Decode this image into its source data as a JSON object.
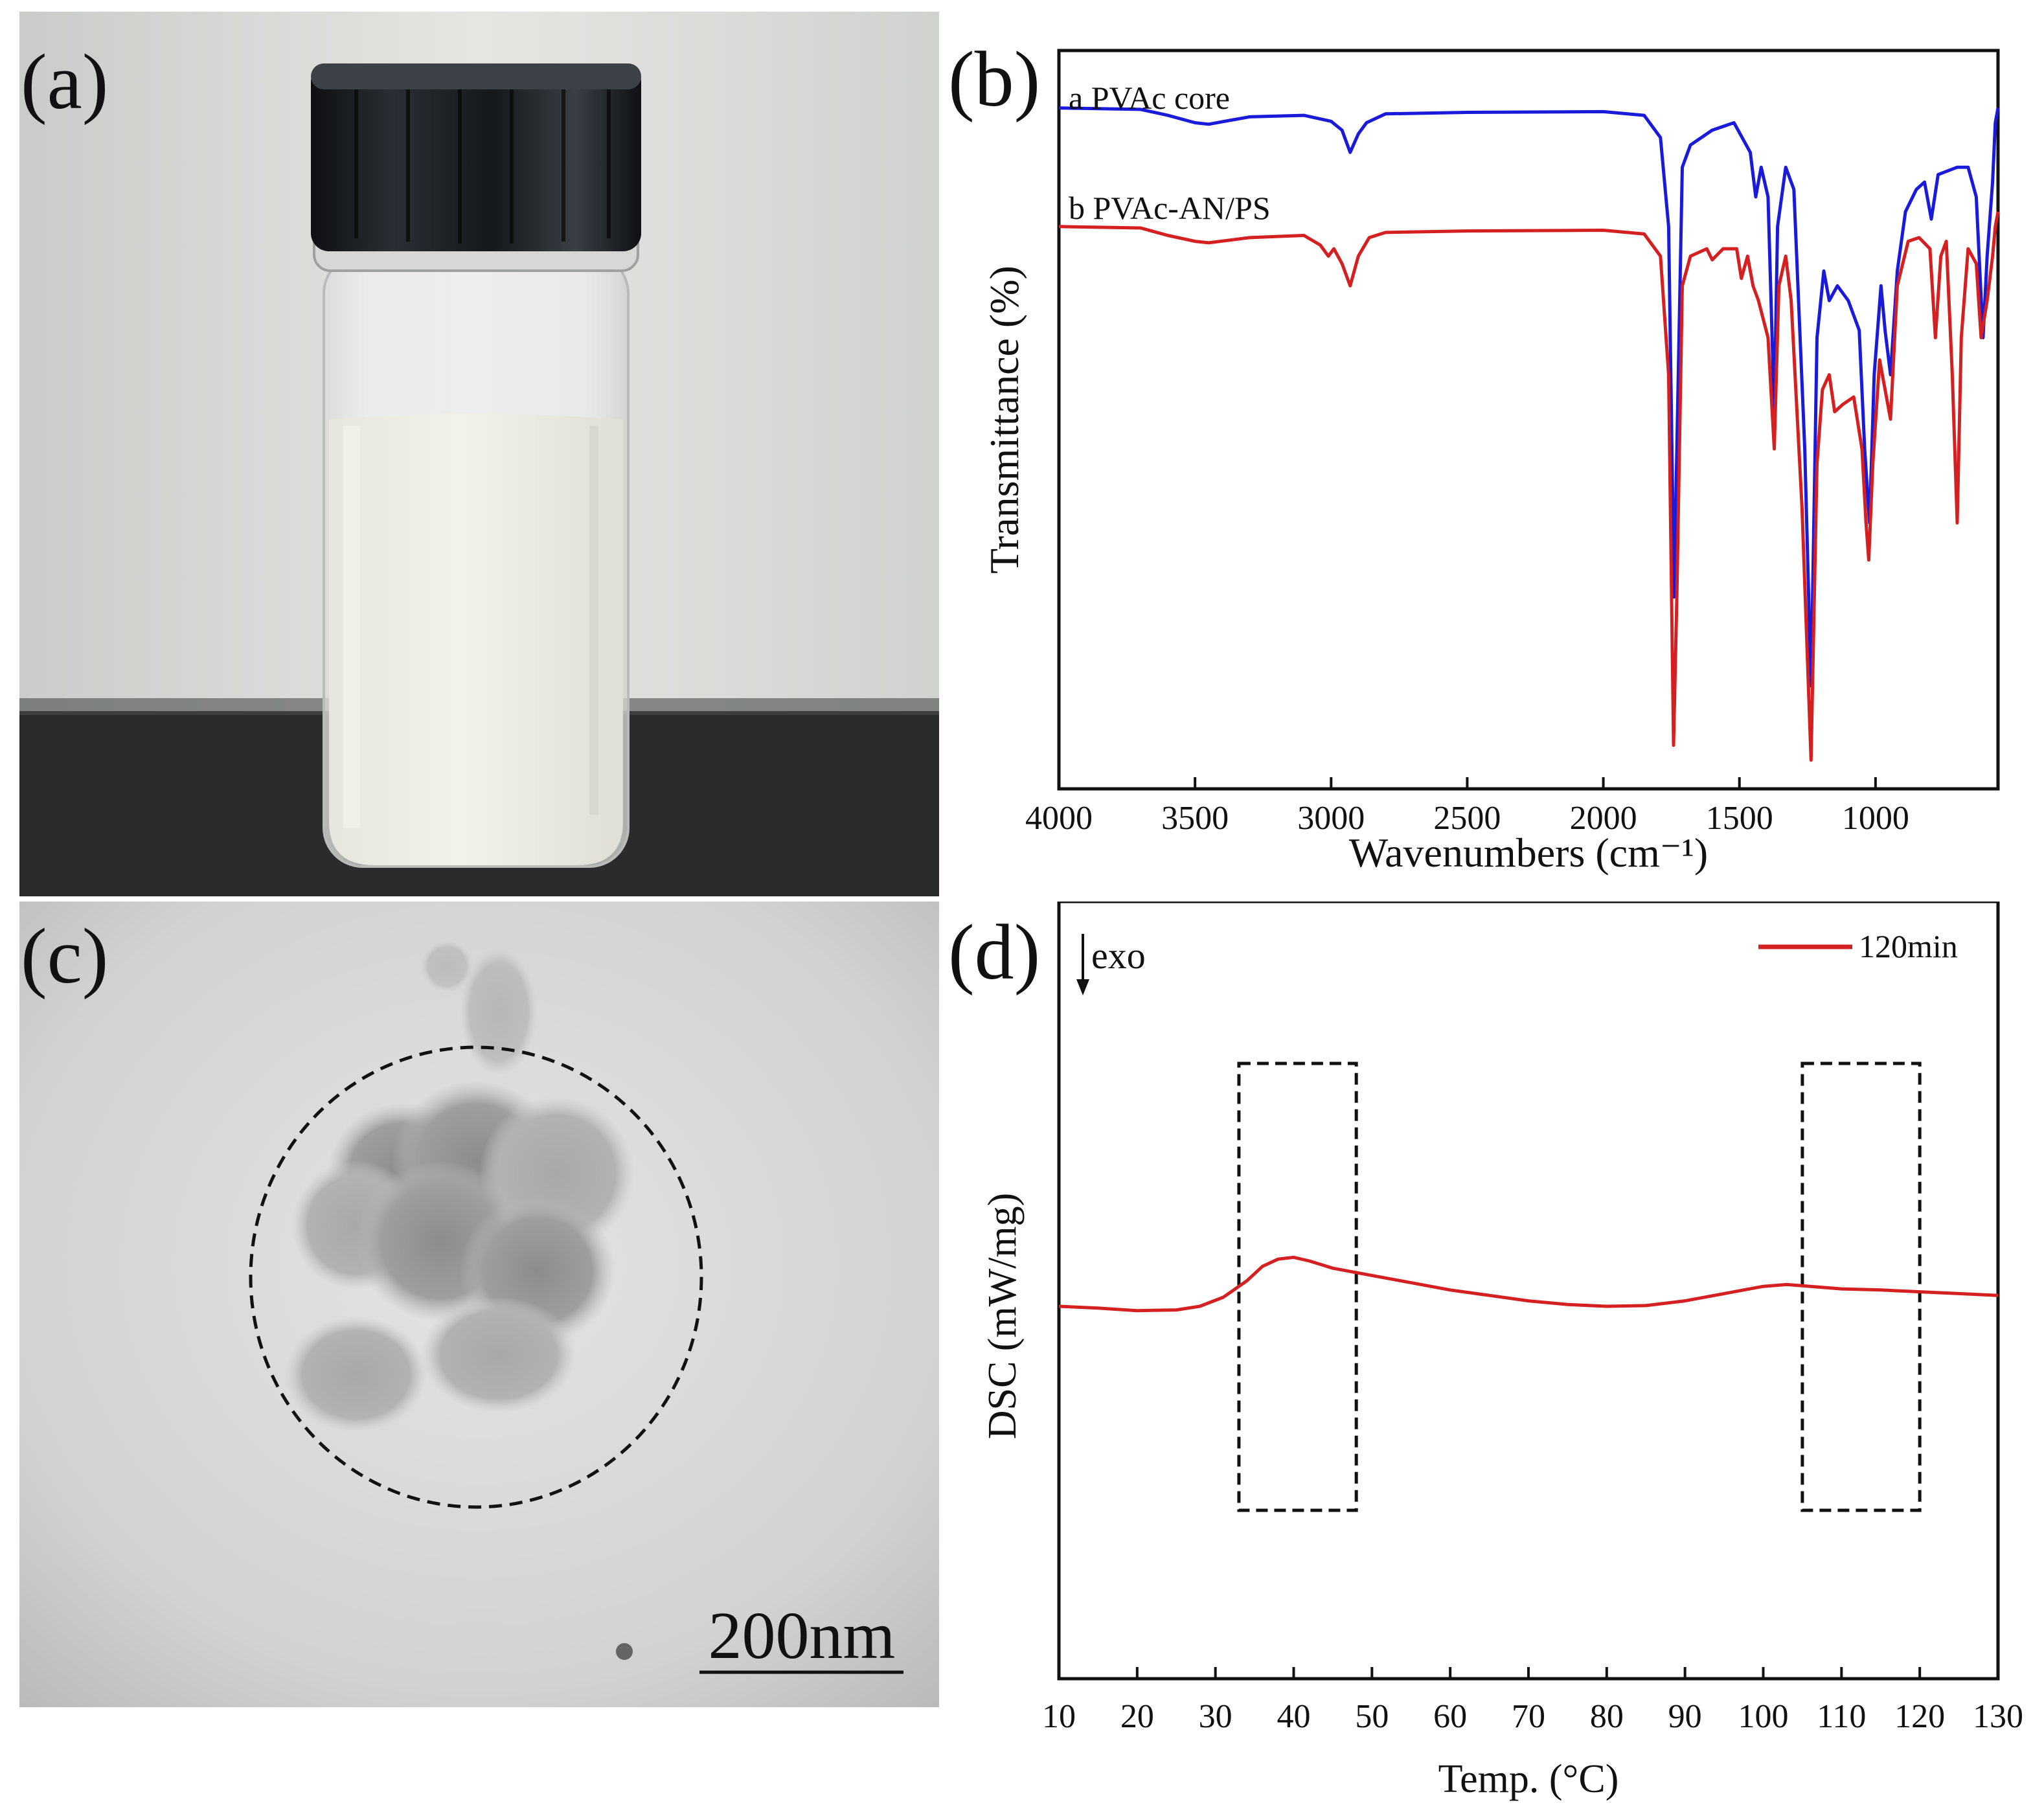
{
  "figure": {
    "panel_a": {
      "label": "(a)",
      "description_icon": "vial-photo"
    },
    "panel_b": {
      "label": "(b)"
    },
    "panel_c": {
      "label": "(c)",
      "scale_bar_text": "200nm"
    },
    "panel_d": {
      "label": "(d)",
      "exo_text": "exo"
    }
  },
  "chart_data": [
    {
      "type": "line",
      "panel": "(b)",
      "xlabel": "Wavenumbers (cm⁻¹)",
      "ylabel": "Transmittance (%)",
      "x_reversed": true,
      "xlim": [
        4000,
        550
      ],
      "xticks": [
        "4000",
        "3500",
        "3000",
        "2500",
        "2000",
        "1500",
        "1000"
      ],
      "y_ticks_shown": false,
      "legend": "top-left, inline labels",
      "series": [
        {
          "name": "a PVAc core",
          "color": "#1a1adb",
          "points": [
            [
              4000,
              86
            ],
            [
              3700,
              85.8
            ],
            [
              3600,
              85
            ],
            [
              3500,
              84
            ],
            [
              3450,
              83.8
            ],
            [
              3300,
              84.8
            ],
            [
              3100,
              85
            ],
            [
              3000,
              84.2
            ],
            [
              2960,
              83
            ],
            [
              2930,
              80
            ],
            [
              2900,
              82.5
            ],
            [
              2870,
              84
            ],
            [
              2800,
              85.2
            ],
            [
              2500,
              85.4
            ],
            [
              2000,
              85.5
            ],
            [
              1850,
              85
            ],
            [
              1790,
              82
            ],
            [
              1760,
              70
            ],
            [
              1740,
              20
            ],
            [
              1730,
              40
            ],
            [
              1710,
              78
            ],
            [
              1680,
              81
            ],
            [
              1600,
              83
            ],
            [
              1520,
              84
            ],
            [
              1460,
              80
            ],
            [
              1440,
              74
            ],
            [
              1420,
              78
            ],
            [
              1395,
              74
            ],
            [
              1372,
              45
            ],
            [
              1360,
              70
            ],
            [
              1330,
              78
            ],
            [
              1300,
              75
            ],
            [
              1260,
              40
            ],
            [
              1237,
              8
            ],
            [
              1215,
              55
            ],
            [
              1190,
              64
            ],
            [
              1170,
              60
            ],
            [
              1140,
              62
            ],
            [
              1100,
              60
            ],
            [
              1060,
              56
            ],
            [
              1040,
              40
            ],
            [
              1022,
              30
            ],
            [
              1005,
              50
            ],
            [
              980,
              62
            ],
            [
              965,
              56
            ],
            [
              945,
              50
            ],
            [
              920,
              64
            ],
            [
              890,
              72
            ],
            [
              850,
              75
            ],
            [
              820,
              76
            ],
            [
              795,
              71
            ],
            [
              770,
              77
            ],
            [
              700,
              78
            ],
            [
              660,
              78
            ],
            [
              630,
              74
            ],
            [
              605,
              55
            ],
            [
              590,
              66
            ],
            [
              570,
              76
            ],
            [
              560,
              84
            ],
            [
              550,
              86
            ]
          ]
        },
        {
          "name": "b PVAc-AN/PS",
          "color": "#d42020",
          "points": [
            [
              4000,
              70
            ],
            [
              3700,
              69.8
            ],
            [
              3600,
              68.8
            ],
            [
              3500,
              68
            ],
            [
              3450,
              67.8
            ],
            [
              3300,
              68.5
            ],
            [
              3100,
              68.8
            ],
            [
              3040,
              67.5
            ],
            [
              3010,
              66
            ],
            [
              2990,
              67
            ],
            [
              2960,
              65
            ],
            [
              2930,
              62
            ],
            [
              2900,
              66
            ],
            [
              2860,
              68.5
            ],
            [
              2800,
              69.2
            ],
            [
              2500,
              69.4
            ],
            [
              2000,
              69.5
            ],
            [
              1850,
              69
            ],
            [
              1790,
              66
            ],
            [
              1760,
              50
            ],
            [
              1742,
              0
            ],
            [
              1730,
              20
            ],
            [
              1710,
              62
            ],
            [
              1680,
              66
            ],
            [
              1620,
              67
            ],
            [
              1600,
              65.5
            ],
            [
              1560,
              67
            ],
            [
              1510,
              67
            ],
            [
              1493,
              63
            ],
            [
              1470,
              66
            ],
            [
              1450,
              62
            ],
            [
              1430,
              60
            ],
            [
              1395,
              55
            ],
            [
              1372,
              40
            ],
            [
              1355,
              62
            ],
            [
              1330,
              66
            ],
            [
              1310,
              60
            ],
            [
              1270,
              32
            ],
            [
              1237,
              -2
            ],
            [
              1215,
              38
            ],
            [
              1195,
              48
            ],
            [
              1170,
              50
            ],
            [
              1150,
              45
            ],
            [
              1120,
              46
            ],
            [
              1080,
              47
            ],
            [
              1050,
              40
            ],
            [
              1035,
              30
            ],
            [
              1025,
              25
            ],
            [
              1010,
              38
            ],
            [
              985,
              52
            ],
            [
              965,
              48
            ],
            [
              945,
              44
            ],
            [
              920,
              62
            ],
            [
              880,
              68
            ],
            [
              840,
              68.5
            ],
            [
              800,
              67
            ],
            [
              780,
              55
            ],
            [
              760,
              66
            ],
            [
              740,
              68
            ],
            [
              718,
              50
            ],
            [
              700,
              30
            ],
            [
              685,
              55
            ],
            [
              660,
              67
            ],
            [
              630,
              65
            ],
            [
              612,
              55
            ],
            [
              590,
              60
            ],
            [
              570,
              66
            ],
            [
              560,
              70
            ],
            [
              550,
              72
            ]
          ]
        }
      ]
    },
    {
      "type": "line",
      "panel": "(d)",
      "xlabel": "Temp. (°C)",
      "ylabel": "DSC (mW/mg)",
      "xlim": [
        10,
        130
      ],
      "xticks": [
        "10",
        "20",
        "30",
        "40",
        "50",
        "60",
        "70",
        "80",
        "90",
        "100",
        "110",
        "120",
        "130"
      ],
      "y_ticks_shown": false,
      "legend": "top-right",
      "annotations": [
        "exo",
        "dashed boxes at ~33–48 °C and ~105–120 °C"
      ],
      "series": [
        {
          "name": "120min",
          "color": "#d42020",
          "points": [
            [
              10,
              0
            ],
            [
              15,
              -0.05
            ],
            [
              20,
              -0.12
            ],
            [
              25,
              -0.1
            ],
            [
              28,
              0
            ],
            [
              31,
              0.25
            ],
            [
              34,
              0.7
            ],
            [
              36,
              1.1
            ],
            [
              38,
              1.3
            ],
            [
              40,
              1.35
            ],
            [
              42,
              1.25
            ],
            [
              45,
              1.05
            ],
            [
              50,
              0.85
            ],
            [
              55,
              0.65
            ],
            [
              60,
              0.45
            ],
            [
              65,
              0.3
            ],
            [
              70,
              0.15
            ],
            [
              75,
              0.05
            ],
            [
              80,
              0
            ],
            [
              85,
              0.02
            ],
            [
              90,
              0.15
            ],
            [
              95,
              0.35
            ],
            [
              100,
              0.55
            ],
            [
              103,
              0.6
            ],
            [
              106,
              0.55
            ],
            [
              110,
              0.48
            ],
            [
              115,
              0.45
            ],
            [
              120,
              0.4
            ],
            [
              125,
              0.35
            ],
            [
              130,
              0.3
            ]
          ]
        }
      ]
    }
  ]
}
